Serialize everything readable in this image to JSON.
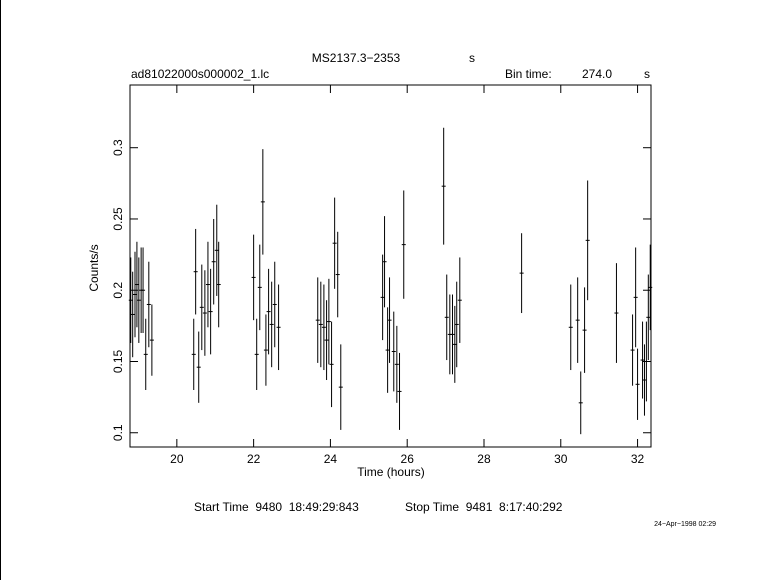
{
  "chart_data": {
    "type": "errorbar",
    "title": "MS2137.3−2353",
    "title_unit": "s",
    "file_name": "ad81022000s000002_1.lc",
    "bin_time_label": "Bin time:",
    "bin_time": "274.0",
    "bin_time_unit": "s",
    "x_label": "Time (hours)",
    "y_label": "Counts/s",
    "start_time": "Start Time  9480  18:49:29:843",
    "stop_time": "Stop Time  9481  8:17:40:292",
    "timestamp": "24−Apr−1998 02:29",
    "color": "#000000",
    "xlim": [
      18.78,
      32.35
    ],
    "ylim": [
      0.09,
      0.344
    ],
    "xticks": [
      20,
      22,
      24,
      26,
      28,
      30,
      32
    ],
    "yticks": [
      0.1,
      0.15,
      0.2,
      0.25,
      0.3
    ],
    "x": [
      18.8,
      18.85,
      18.91,
      18.96,
      19.01,
      19.07,
      19.12,
      19.19,
      19.27,
      19.35,
      20.44,
      20.49,
      20.57,
      20.65,
      20.73,
      20.81,
      20.88,
      20.96,
      21.04,
      21.09,
      22.0,
      22.08,
      22.16,
      22.24,
      22.32,
      22.39,
      22.47,
      22.55,
      22.65,
      23.67,
      23.75,
      23.83,
      23.9,
      23.96,
      24.03,
      24.11,
      24.19,
      24.27,
      25.36,
      25.41,
      25.49,
      25.54,
      25.65,
      25.73,
      25.8,
      25.91,
      26.95,
      27.03,
      27.11,
      27.18,
      27.24,
      27.29,
      27.37,
      28.98,
      30.26,
      30.44,
      30.52,
      30.62,
      30.7,
      31.45,
      31.87,
      31.95,
      32.0,
      32.13,
      32.18,
      32.23,
      32.28,
      32.33
    ],
    "values": [
      0.193,
      0.183,
      0.197,
      0.204,
      0.193,
      0.2,
      0.2,
      0.155,
      0.19,
      0.165,
      0.155,
      0.213,
      0.146,
      0.188,
      0.184,
      0.204,
      0.185,
      0.22,
      0.228,
      0.204,
      0.209,
      0.155,
      0.202,
      0.262,
      0.158,
      0.185,
      0.176,
      0.19,
      0.174,
      0.179,
      0.176,
      0.174,
      0.165,
      0.178,
      0.148,
      0.233,
      0.211,
      0.132,
      0.195,
      0.22,
      0.158,
      0.179,
      0.157,
      0.148,
      0.129,
      0.232,
      0.273,
      0.181,
      0.169,
      0.169,
      0.162,
      0.176,
      0.193,
      0.212,
      0.174,
      0.179,
      0.121,
      0.172,
      0.235,
      0.184,
      0.158,
      0.195,
      0.134,
      0.151,
      0.137,
      0.15,
      0.181,
      0.202
    ],
    "errors": [
      0.03,
      0.03,
      0.03,
      0.03,
      0.03,
      0.03,
      0.03,
      0.025,
      0.03,
      0.025,
      0.025,
      0.03,
      0.025,
      0.03,
      0.03,
      0.03,
      0.03,
      0.03,
      0.032,
      0.03,
      0.03,
      0.025,
      0.03,
      0.037,
      0.025,
      0.03,
      0.03,
      0.03,
      0.03,
      0.03,
      0.03,
      0.03,
      0.028,
      0.03,
      0.03,
      0.032,
      0.03,
      0.03,
      0.03,
      0.032,
      0.03,
      0.03,
      0.028,
      0.027,
      0.027,
      0.038,
      0.041,
      0.03,
      0.028,
      0.028,
      0.027,
      0.03,
      0.03,
      0.028,
      0.03,
      0.03,
      0.022,
      0.03,
      0.042,
      0.035,
      0.025,
      0.035,
      0.025,
      0.027,
      0.025,
      0.028,
      0.03,
      0.03
    ]
  }
}
